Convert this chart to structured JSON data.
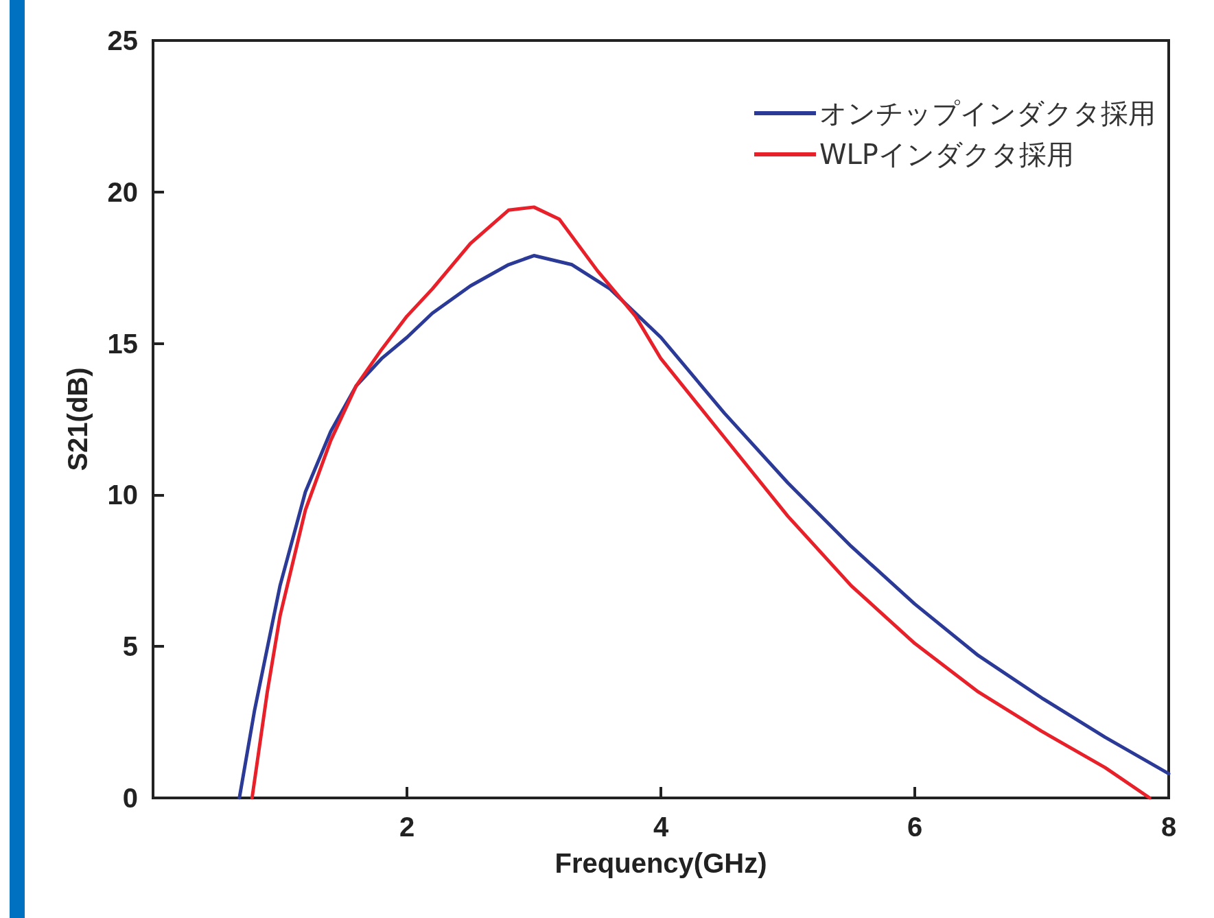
{
  "chart_data": {
    "type": "line",
    "xlabel": "Frequency(GHz)",
    "ylabel": "S21(dB)",
    "xlim": [
      0,
      8
    ],
    "xticks": [
      2,
      4,
      6,
      8
    ],
    "ylim": [
      0,
      25
    ],
    "yticks": [
      0,
      5,
      10,
      15,
      20,
      25
    ],
    "grid": false,
    "legend": "top right",
    "marker": "none",
    "line_style": "solid",
    "series": [
      {
        "name": "オンチップインダクタ採用",
        "color": "#2b3a96",
        "x": [
          0.68,
          0.8,
          1.0,
          1.2,
          1.4,
          1.6,
          1.8,
          2.0,
          2.2,
          2.5,
          2.8,
          3.0,
          3.3,
          3.6,
          4.0,
          4.5,
          5.0,
          5.5,
          6.0,
          6.5,
          7.0,
          7.5,
          8.0
        ],
        "values": [
          0,
          2.9,
          7.0,
          10.1,
          12.1,
          13.6,
          14.5,
          15.2,
          16.0,
          16.9,
          17.6,
          17.9,
          17.6,
          16.8,
          15.2,
          12.7,
          10.4,
          8.3,
          6.4,
          4.7,
          3.3,
          2.0,
          0.8
        ]
      },
      {
        "name": "WLPインダクタ採用",
        "color": "#e8202a",
        "x": [
          0.78,
          0.9,
          1.0,
          1.2,
          1.4,
          1.6,
          1.8,
          2.0,
          2.2,
          2.5,
          2.8,
          3.0,
          3.2,
          3.5,
          3.8,
          4.0,
          4.5,
          5.0,
          5.5,
          6.0,
          6.5,
          7.0,
          7.5,
          7.85
        ],
        "values": [
          0,
          3.5,
          6.0,
          9.5,
          11.8,
          13.6,
          14.8,
          15.9,
          16.8,
          18.3,
          19.4,
          19.5,
          19.1,
          17.4,
          15.9,
          14.5,
          11.9,
          9.3,
          7.0,
          5.1,
          3.5,
          2.2,
          1.0,
          0
        ]
      }
    ]
  }
}
